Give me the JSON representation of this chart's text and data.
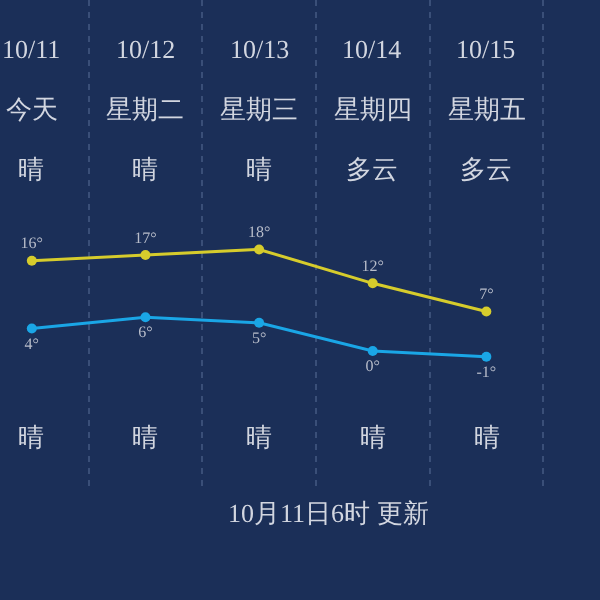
{
  "chart_data": {
    "type": "line",
    "categories": [
      "10/11",
      "10/12",
      "10/13",
      "10/14",
      "10/15"
    ],
    "series": [
      {
        "color": "#d6cc2c",
        "values": [
          16,
          17,
          18,
          12,
          7
        ],
        "value_labels": [
          "16°",
          "17°",
          "18°",
          "12°",
          "7°"
        ]
      },
      {
        "color": "#1aa6e6",
        "values": [
          4,
          6,
          5,
          0,
          -1
        ],
        "value_labels": [
          "4°",
          "6°",
          "5°",
          "0°",
          "-1°"
        ]
      }
    ],
    "marker": "circle",
    "line_style": "solid",
    "grid": "x",
    "legend": false,
    "annotations": [
      "今天",
      "星期二",
      "星期三",
      "星期四",
      "星期五",
      "晴",
      "晴",
      "晴",
      "多云",
      "多云",
      "晴",
      "晴",
      "晴",
      "晴",
      "晴",
      "10月11日6时 更新"
    ]
  }
}
